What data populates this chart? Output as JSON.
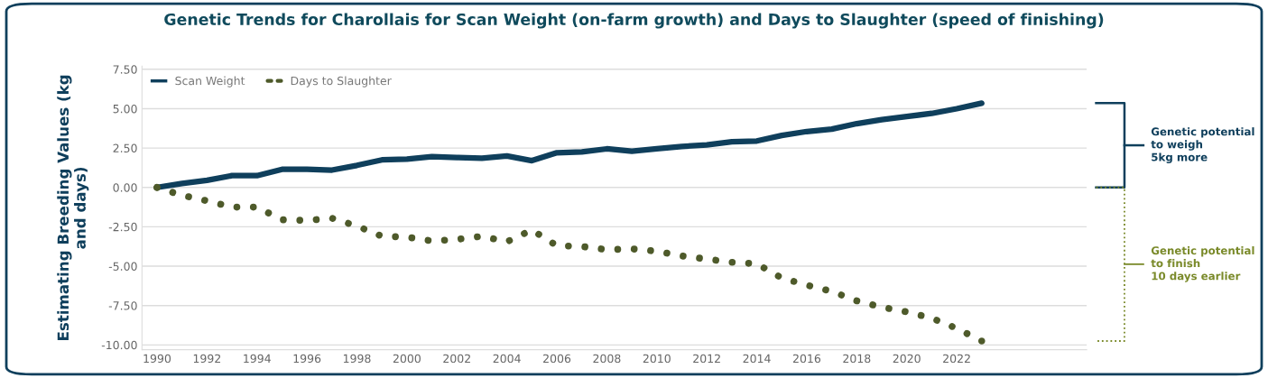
{
  "chart_data": {
    "type": "line",
    "title": "Genetic Trends for Charollais for Scan Weight (on-farm growth) and Days to Slaughter (speed of finishing)",
    "ylabel": "Estimating Breeding Values (kg\nand days)",
    "x": [
      1990,
      1991,
      1992,
      1993,
      1994,
      1995,
      1996,
      1997,
      1998,
      1999,
      2000,
      2001,
      2002,
      2003,
      2004,
      2005,
      2006,
      2007,
      2008,
      2009,
      2010,
      2011,
      2012,
      2013,
      2014,
      2015,
      2016,
      2017,
      2018,
      2019,
      2020,
      2021,
      2022,
      2023
    ],
    "series": [
      {
        "name": "Scan Weight",
        "color": "#0f3f5c",
        "line_style": "solid",
        "values": [
          0,
          0.25,
          0.45,
          0.75,
          0.75,
          1.15,
          1.15,
          1.1,
          1.4,
          1.75,
          1.8,
          1.95,
          1.9,
          1.85,
          2.0,
          1.7,
          2.2,
          2.25,
          2.45,
          2.3,
          2.45,
          2.6,
          2.7,
          2.9,
          2.95,
          3.3,
          3.55,
          3.7,
          4.05,
          4.3,
          4.5,
          4.7,
          5.0,
          5.35
        ]
      },
      {
        "name": "Days to Slaughter",
        "color": "#4e5a2a",
        "line_style": "dotted",
        "values": [
          0,
          -0.5,
          -0.85,
          -1.25,
          -1.25,
          -2.05,
          -2.1,
          -1.95,
          -2.45,
          -3.1,
          -3.15,
          -3.4,
          -3.3,
          -3.1,
          -3.45,
          -2.7,
          -3.7,
          -3.75,
          -3.95,
          -3.9,
          -4.05,
          -4.35,
          -4.55,
          -4.75,
          -4.85,
          -5.75,
          -6.2,
          -6.6,
          -7.2,
          -7.6,
          -7.9,
          -8.3,
          -8.95,
          -9.75
        ]
      }
    ],
    "xlim": [
      1989.4,
      2027.2
    ],
    "xticks": [
      1990,
      1992,
      1994,
      1996,
      1998,
      2000,
      2002,
      2004,
      2006,
      2008,
      2010,
      2012,
      2014,
      2016,
      2018,
      2020,
      2022
    ],
    "ylim": [
      -10.3,
      7.7
    ],
    "yticks": [
      {
        "value": 7.5,
        "label": "7.50"
      },
      {
        "value": 5,
        "label": "5.00"
      },
      {
        "value": 2.5,
        "label": "2.50"
      },
      {
        "value": 0,
        "label": "0.00"
      },
      {
        "value": -2.5,
        "label": "-2.50"
      },
      {
        "value": -5,
        "label": "-5.00"
      },
      {
        "value": -7.5,
        "label": "-7.50"
      },
      {
        "value": -10,
        "label": "-10.00"
      }
    ],
    "grid": "y",
    "legend": "top left",
    "annotations": [
      "Genetic potential\nto weigh\n5kg more",
      "Genetic potential\nto finish\n10 days earlier"
    ]
  }
}
